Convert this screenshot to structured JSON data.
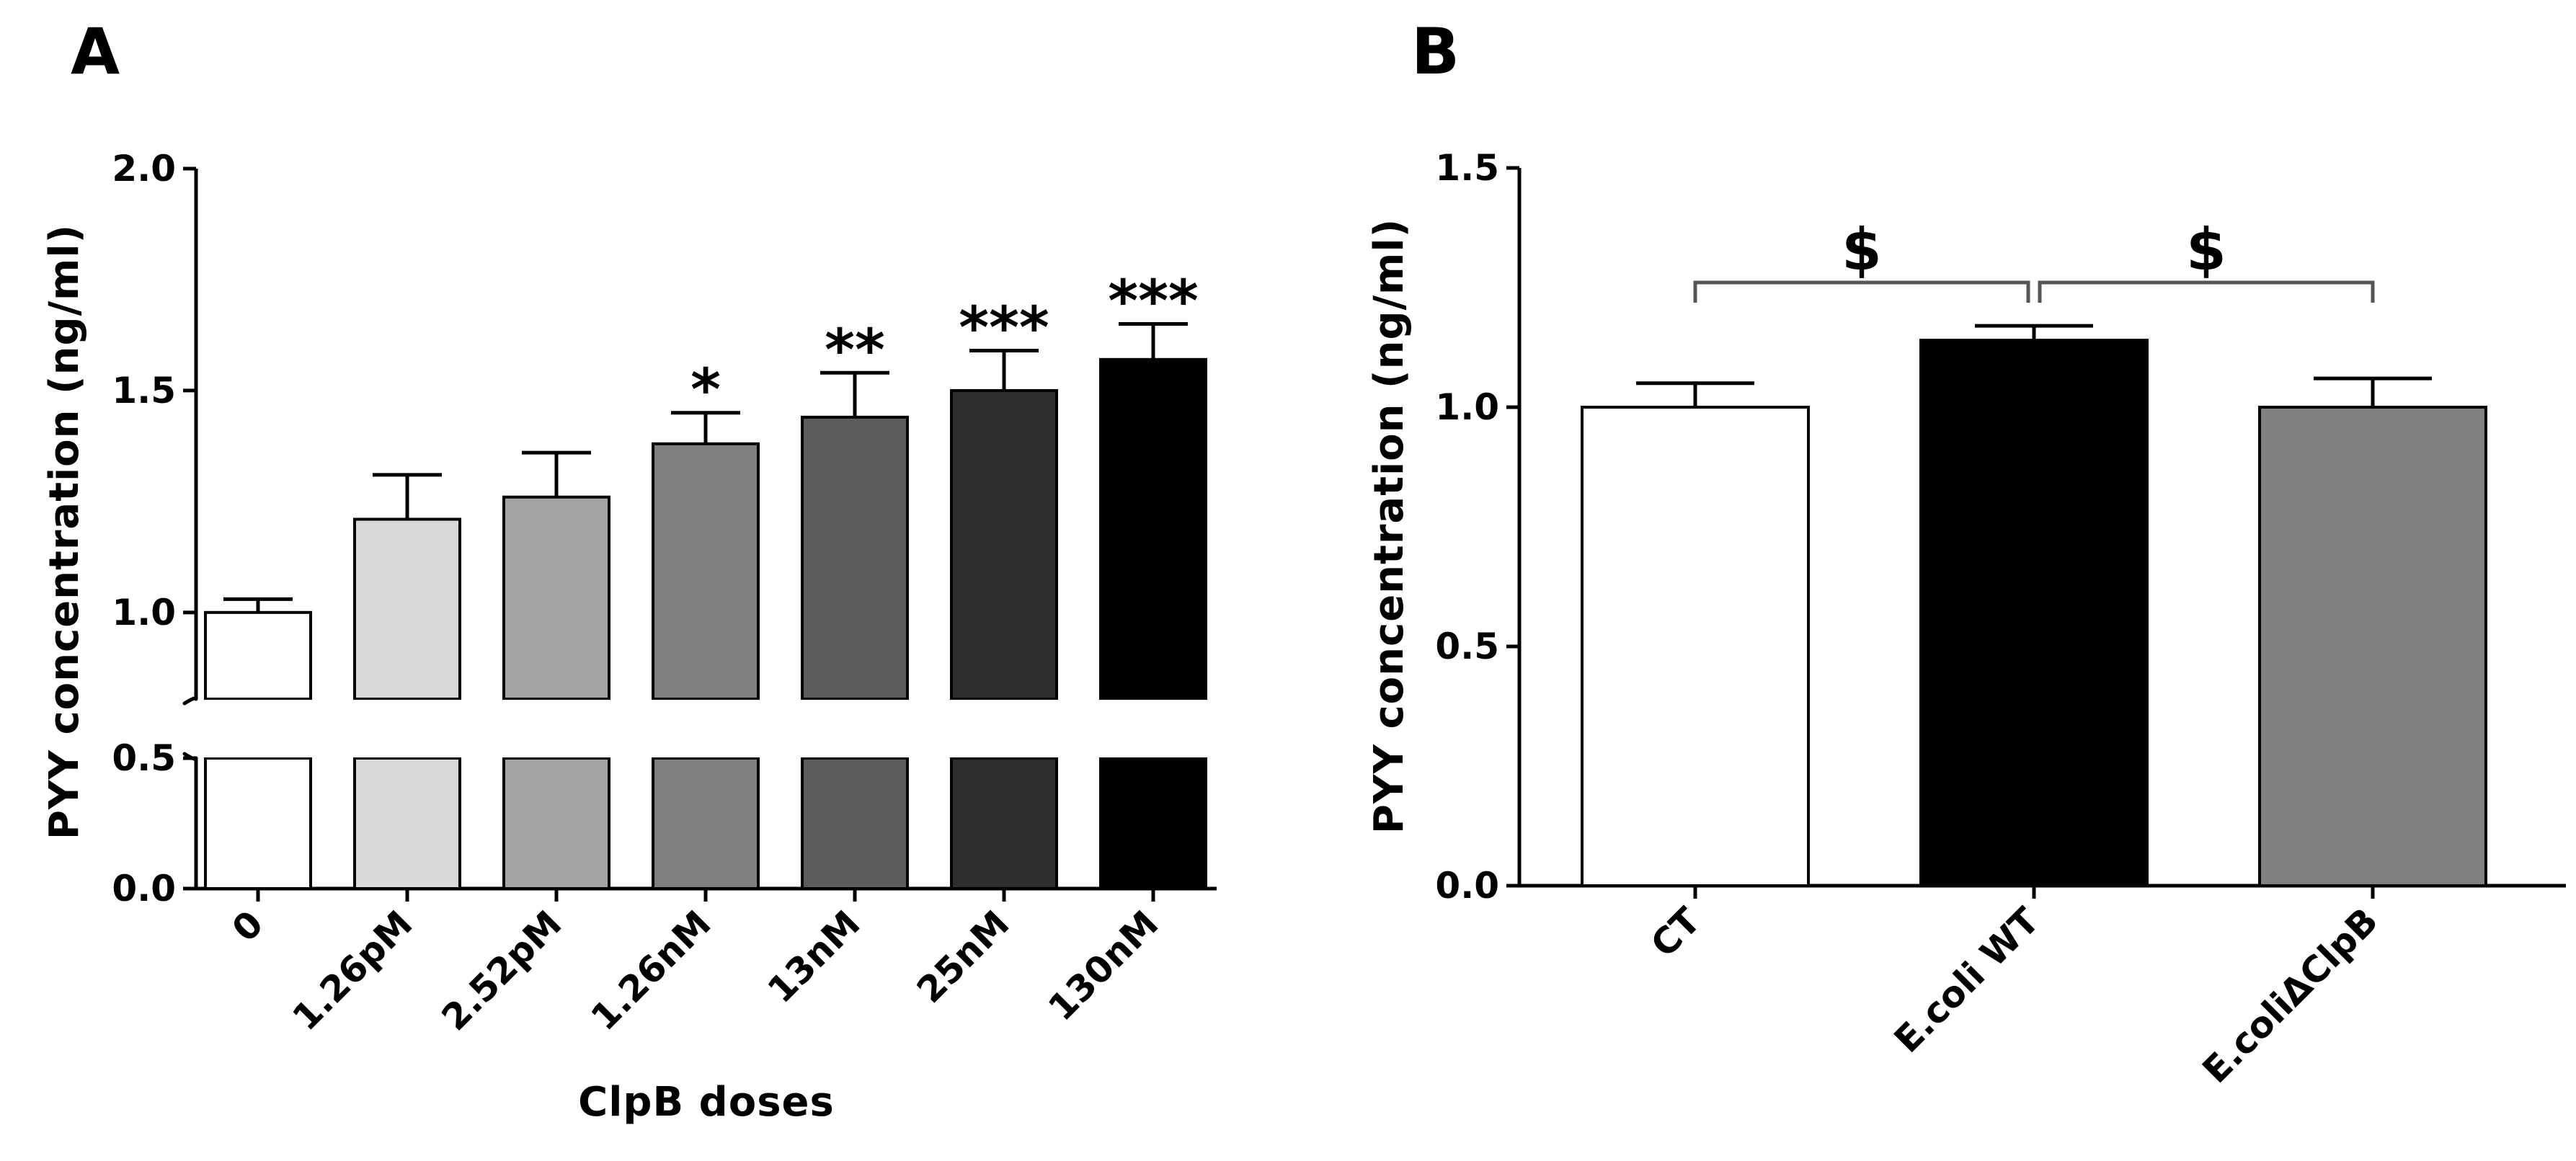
{
  "chart_data": [
    {
      "panel": "A",
      "type": "bar",
      "title": "",
      "xlabel": "ClpB doses",
      "ylabel": "PYY concentration (ng/ml)",
      "ylim": [
        0,
        2.0
      ],
      "axis_break": [
        0.5,
        0.8
      ],
      "yticks": [
        0.0,
        0.5,
        1.0,
        1.5,
        2.0
      ],
      "ytick_labels": [
        "0.0",
        "0.5",
        "1.0",
        "1.5",
        "2.0"
      ],
      "categories": [
        "0",
        "1.26pM",
        "2.52pM",
        "1.26nM",
        "13nM",
        "25nM",
        "130nM"
      ],
      "values": [
        1.0,
        1.21,
        1.26,
        1.38,
        1.44,
        1.5,
        1.57
      ],
      "errors": [
        0.03,
        0.1,
        0.1,
        0.07,
        0.1,
        0.09,
        0.08
      ],
      "colors": [
        "#ffffff",
        "#d9d9d9",
        "#a3a3a6",
        "#808080",
        "#5c5c5c",
        "#2e2e2e",
        "#000000"
      ],
      "annotations": [
        "",
        "",
        "",
        "*",
        "**",
        "***",
        "***"
      ]
    },
    {
      "panel": "B",
      "type": "bar",
      "title": "",
      "xlabel": "",
      "ylabel": "PYY concentration (ng/ml)",
      "ylim": [
        0,
        1.5
      ],
      "yticks": [
        0.0,
        0.5,
        1.0,
        1.5
      ],
      "ytick_labels": [
        "0.0",
        "0.5",
        "1.0",
        "1.5"
      ],
      "categories": [
        "CT",
        "E.coli WT",
        "E.coliΔClpB"
      ],
      "values": [
        1.0,
        1.14,
        1.0
      ],
      "errors": [
        0.05,
        0.03,
        0.06
      ],
      "colors": [
        "#ffffff",
        "#000000",
        "#808080"
      ],
      "brackets": [
        {
          "from": 0,
          "to": 1,
          "label": "$"
        },
        {
          "from": 1,
          "to": 2,
          "label": "$"
        }
      ]
    }
  ]
}
